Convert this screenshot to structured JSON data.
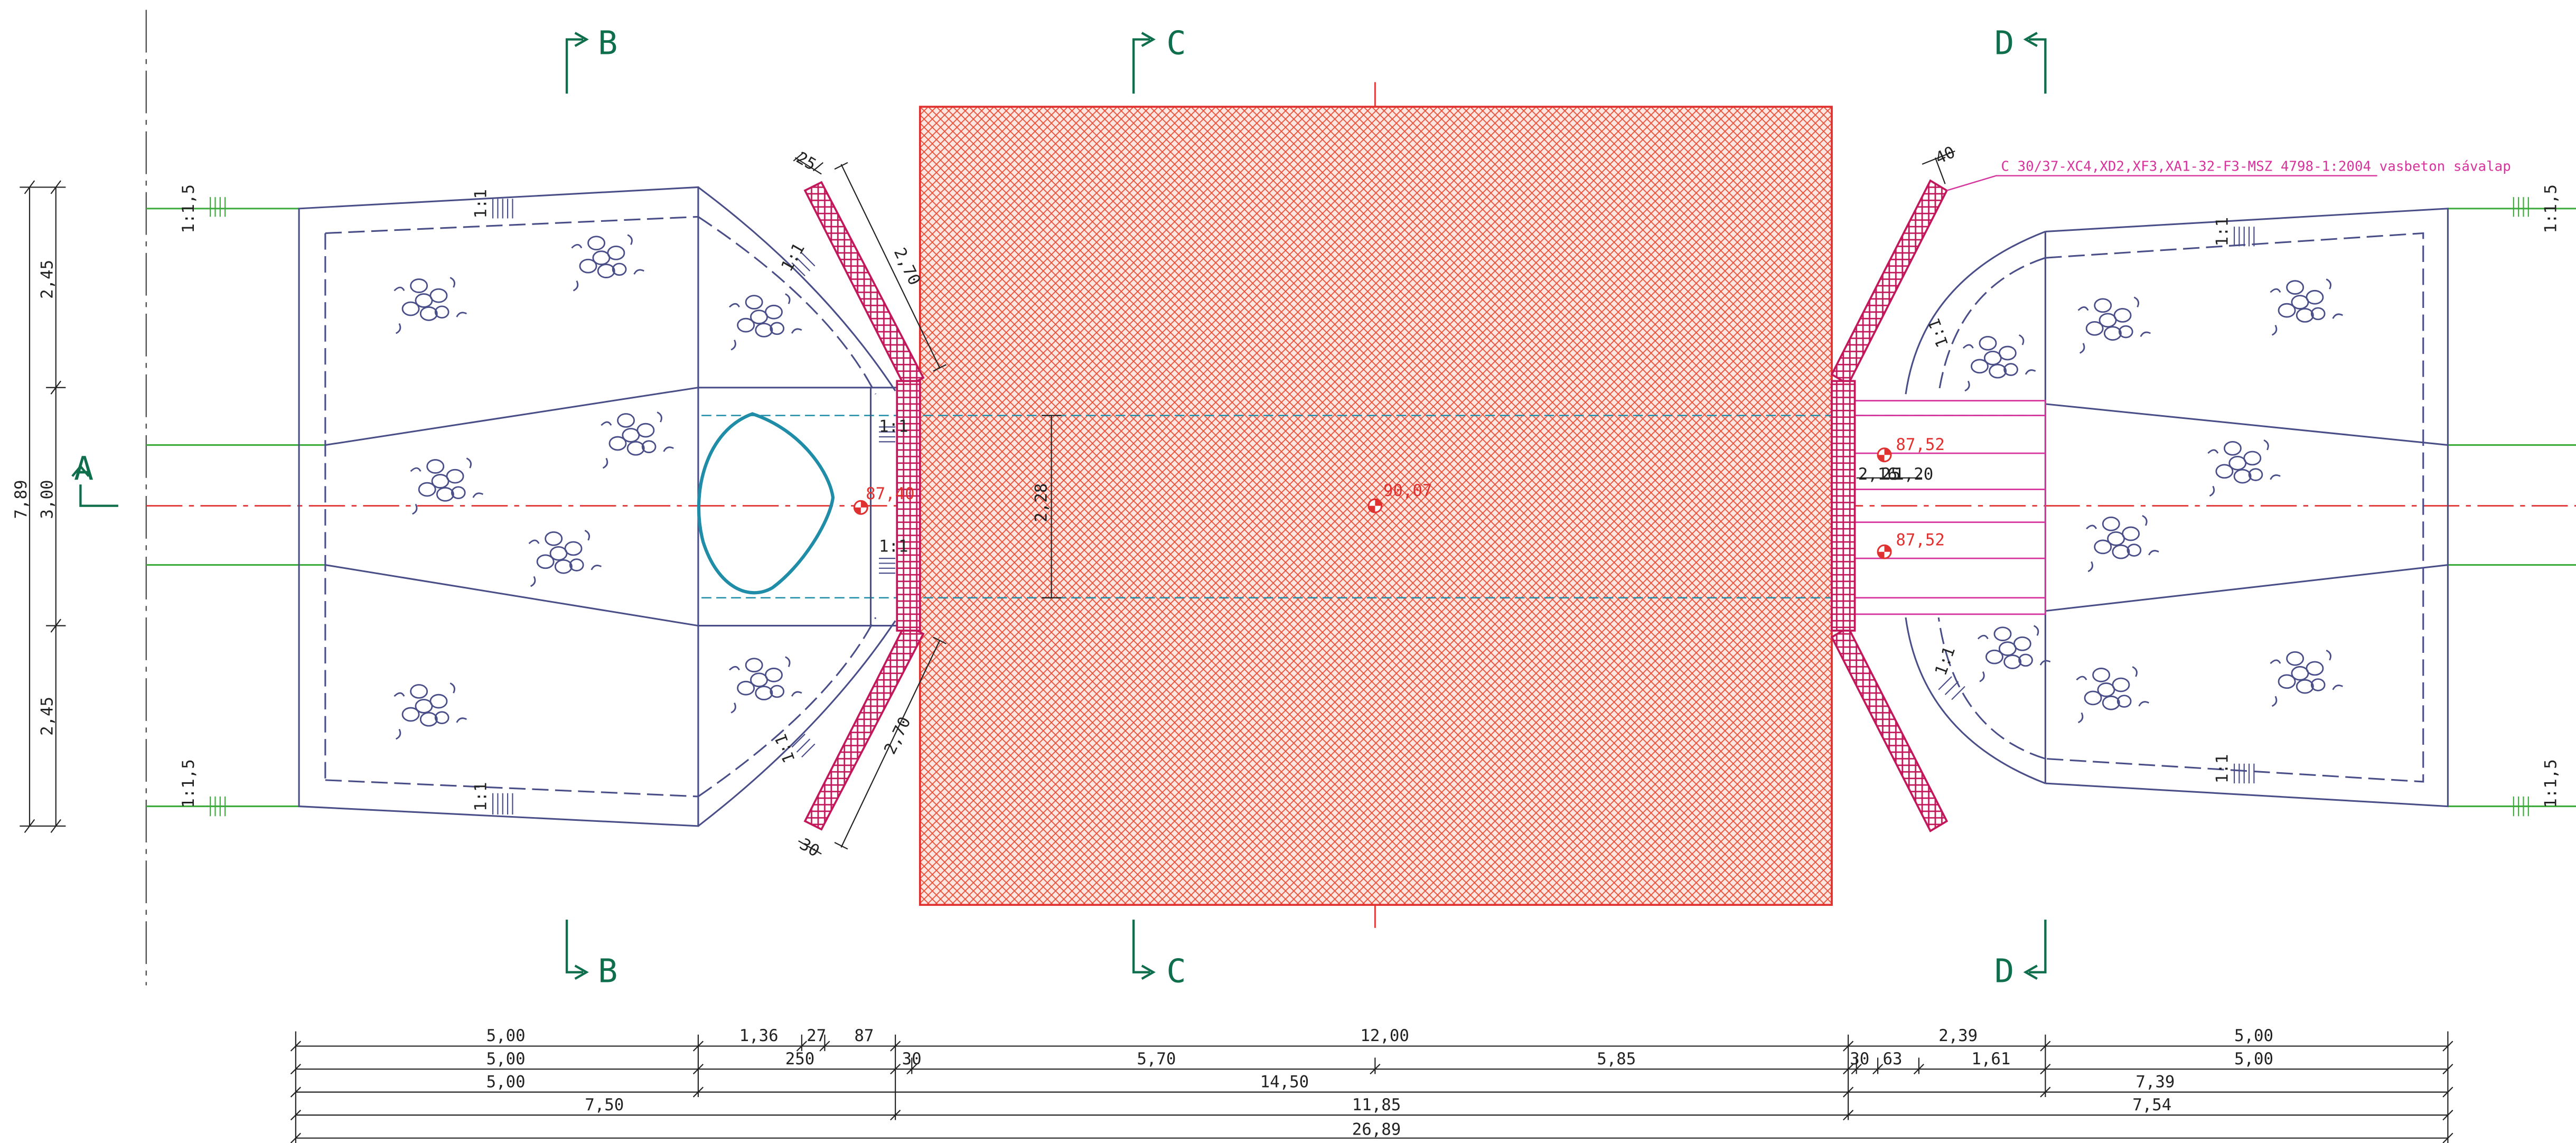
{
  "drawing": {
    "colors": {
      "outline": "#4a4e88",
      "ground": "#3cab3c",
      "centerline": "#e03131",
      "hatch": "#e8513a",
      "culvert": "#1f8ca8",
      "revetment": "#c2185b",
      "foundation": "#d6339c",
      "section": "#0f6e4c",
      "dimension": "#222222"
    },
    "section_marks": {
      "a": "A",
      "b_top": "B",
      "b_bottom": "B",
      "c_top": "C",
      "c_bottom": "C",
      "d_top": "D",
      "d_bottom": "D"
    },
    "elevations": {
      "inlet": "87,40",
      "center": "90,07",
      "outlet_upper": "87,52",
      "outlet_lower": "87,52"
    },
    "foundation_note": "C 30/37-XC4,XD2,XF3,XA1-32-F3-MSZ  4798-1:2004 vasbeton sávalap",
    "slopes": {
      "left_top_edge": "1:1,5",
      "left_bottom_edge": "1:1,5",
      "right_top_edge": "1:1,5",
      "right_bottom_edge": "1:1,5",
      "left_apron_top": "1:1",
      "left_apron_bottom": "1:1",
      "left_wing_top": "1:1",
      "left_wing_bottom": "1:1",
      "left_inlet_upper": "1:1",
      "left_inlet_lower": "1:1",
      "right_apron_top": "1:1",
      "right_apron_bottom": "1:1",
      "right_wing_top": "1:1",
      "right_wing_bottom": "1:1"
    },
    "local_dims": {
      "left_wing_width_top": "25",
      "left_wing_length_top": "2,70",
      "left_wing_width_bottom": "30",
      "left_wing_length_bottom": "2,70",
      "right_wing_width_top": "40",
      "pipe_opening": "2,28",
      "outlet_a": "2,16",
      "outlet_b": "25",
      "outlet_c": "1,20"
    },
    "vertical_dims": {
      "upper": "2,45",
      "middle": "3,00",
      "lower": "2,45",
      "total": "7,89"
    },
    "dim_rows": [
      [
        "5,00",
        "1,36",
        "27",
        "87",
        "12,00",
        "2,39",
        "5,00"
      ],
      [
        "5,00",
        "250",
        "30",
        "5,70",
        "5,85",
        "30",
        "63",
        "1,61",
        "5,00"
      ],
      [
        "5,00",
        "14,50",
        "7,39"
      ],
      [
        "7,50",
        "11,85",
        "7,54"
      ],
      [
        "26,89"
      ]
    ]
  }
}
